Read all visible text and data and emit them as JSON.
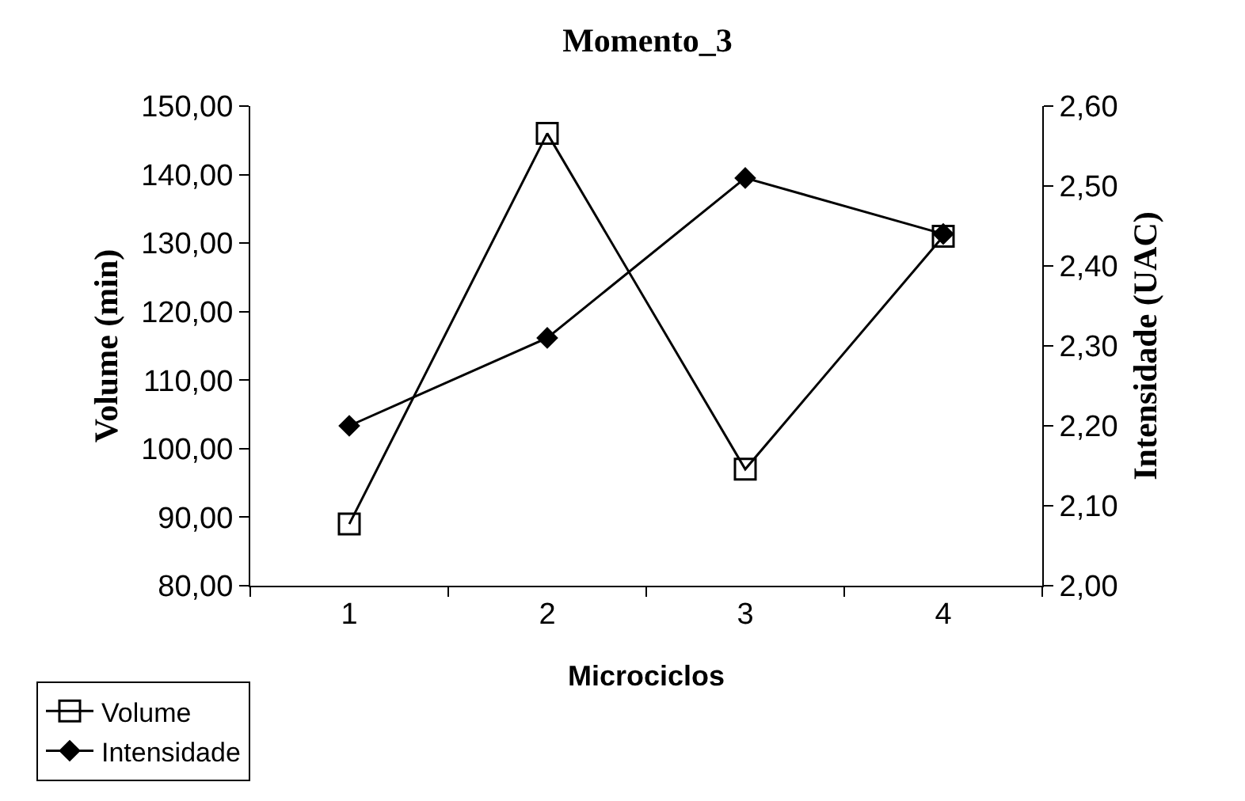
{
  "chart_data": {
    "type": "line",
    "title": "Momento_3",
    "xlabel": "Microciclos",
    "ylabel": "Volume (min)",
    "y2label": "Intensidade (UAC)",
    "categories": [
      "1",
      "2",
      "3",
      "4"
    ],
    "series": [
      {
        "name": "Volume",
        "color": "#000000",
        "marker": "square",
        "values": [
          89,
          146,
          97,
          131
        ]
      },
      {
        "name": "Intensidade",
        "color": "#000000",
        "marker": "diamond",
        "axis": "y2",
        "values": [
          2.2,
          2.31,
          2.51,
          2.44
        ]
      }
    ],
    "ylim": [
      80,
      150
    ],
    "yticks": [
      {
        "value": 80,
        "label": "80,00"
      },
      {
        "value": 90,
        "label": "90,00"
      },
      {
        "value": 100,
        "label": "100,00"
      },
      {
        "value": 110,
        "label": "110,00"
      },
      {
        "value": 120,
        "label": "120,00"
      },
      {
        "value": 130,
        "label": "130,00"
      },
      {
        "value": 140,
        "label": "140,00"
      },
      {
        "value": 150,
        "label": "150,00"
      }
    ],
    "y2lim": [
      2.0,
      2.6
    ],
    "y2ticks": [
      {
        "value": 2.0,
        "label": "2,00"
      },
      {
        "value": 2.1,
        "label": "2,10"
      },
      {
        "value": 2.2,
        "label": "2,20"
      },
      {
        "value": 2.3,
        "label": "2,30"
      },
      {
        "value": 2.4,
        "label": "2,40"
      },
      {
        "value": 2.5,
        "label": "2,50"
      },
      {
        "value": 2.6,
        "label": "2,60"
      }
    ],
    "grid": false,
    "legend": "bottom left",
    "line_style": "solid"
  }
}
